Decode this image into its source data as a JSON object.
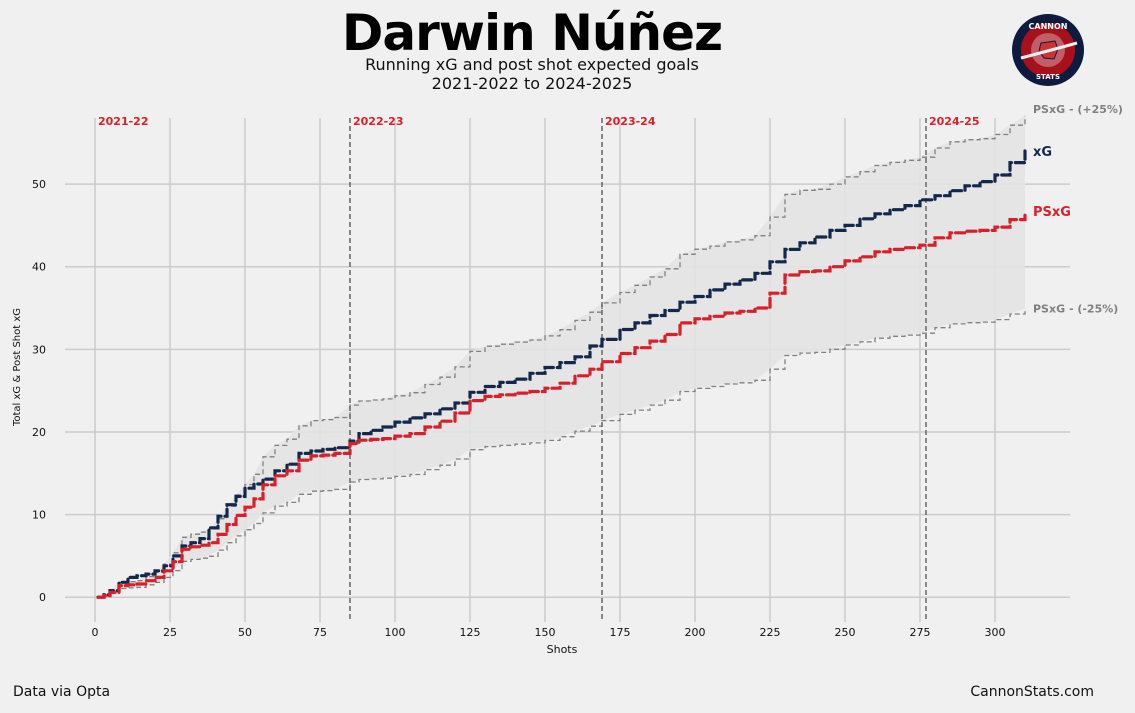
{
  "header": {
    "title": "Darwin Núñez",
    "subtitle_line1": "Running xG and post shot expected goals",
    "subtitle_line2": "2021-2022 to 2024-2025"
  },
  "footer": {
    "left": "Data via Opta",
    "right": "CannonStats.com"
  },
  "logo": {
    "top_text": "CANNON",
    "bottom_text": "STATS"
  },
  "colors": {
    "xg": "#14284b",
    "psxg": "#d81f2a",
    "band": "#808080",
    "band_fill": "#e3e3e3",
    "grid": "#cbcbcb",
    "season_line": "#666666",
    "season_label": "#d81f2a"
  },
  "chart_data": {
    "type": "line",
    "title": "Darwin Núñez",
    "xlabel": "Shots",
    "ylabel": "Total xG & Post Shot xG",
    "xlim": [
      -10,
      325
    ],
    "ylim": [
      -3,
      58
    ],
    "xticks": [
      0,
      25,
      50,
      75,
      100,
      125,
      150,
      175,
      200,
      225,
      250,
      275,
      300
    ],
    "yticks": [
      0,
      10,
      20,
      30,
      40,
      50
    ],
    "seasons": [
      {
        "label": "2021-22",
        "x": 0
      },
      {
        "label": "2022-23",
        "x": 85
      },
      {
        "label": "2023-24",
        "x": 169
      },
      {
        "label": "2024-25",
        "x": 277
      }
    ],
    "series": [
      {
        "name": "xG",
        "end_label": "xG",
        "x": [
          1,
          3,
          5,
          8,
          11,
          14,
          17,
          20,
          23,
          26,
          29,
          32,
          35,
          38,
          41,
          44,
          47,
          50,
          53,
          56,
          60,
          64,
          68,
          72,
          76,
          80,
          85,
          88,
          92,
          96,
          100,
          105,
          110,
          115,
          120,
          125,
          130,
          135,
          140,
          145,
          150,
          155,
          160,
          165,
          169,
          175,
          180,
          185,
          190,
          195,
          200,
          205,
          210,
          215,
          220,
          225,
          230,
          235,
          240,
          245,
          250,
          255,
          260,
          265,
          270,
          275,
          280,
          285,
          290,
          295,
          300,
          305,
          310
        ],
        "values": [
          0.0,
          0.3,
          0.8,
          1.8,
          2.4,
          2.6,
          2.8,
          3.2,
          3.8,
          5.0,
          6.2,
          6.6,
          7.1,
          8.4,
          9.8,
          11.2,
          12.2,
          13.2,
          13.7,
          14.3,
          15.3,
          16.1,
          17.4,
          17.7,
          17.9,
          18.1,
          18.9,
          19.8,
          20.2,
          20.6,
          21.2,
          21.7,
          22.2,
          22.8,
          23.5,
          24.8,
          25.5,
          26.0,
          26.4,
          27.1,
          27.8,
          28.4,
          29.1,
          30.4,
          31.2,
          32.4,
          33.2,
          34.1,
          34.7,
          35.7,
          36.4,
          37.2,
          37.9,
          38.4,
          39.2,
          40.6,
          42.1,
          42.9,
          43.6,
          44.4,
          45.0,
          45.8,
          46.4,
          46.9,
          47.4,
          48.1,
          48.6,
          49.2,
          49.8,
          50.3,
          51.1,
          52.6,
          54.0
        ]
      },
      {
        "name": "PSxG",
        "end_label": "PSxG",
        "x": [
          1,
          3,
          5,
          8,
          11,
          14,
          17,
          20,
          23,
          26,
          29,
          32,
          35,
          38,
          41,
          44,
          47,
          50,
          53,
          56,
          60,
          64,
          68,
          72,
          76,
          80,
          85,
          88,
          92,
          96,
          100,
          105,
          110,
          115,
          120,
          125,
          130,
          135,
          140,
          145,
          150,
          155,
          160,
          165,
          169,
          175,
          180,
          185,
          190,
          195,
          200,
          205,
          210,
          215,
          220,
          225,
          230,
          235,
          240,
          245,
          250,
          255,
          260,
          265,
          270,
          275,
          280,
          285,
          290,
          295,
          300,
          305,
          310
        ],
        "values": [
          0.0,
          0.2,
          0.6,
          1.4,
          1.5,
          1.6,
          2.0,
          2.4,
          3.2,
          4.3,
          5.8,
          6.1,
          6.3,
          6.6,
          7.6,
          8.8,
          9.9,
          10.9,
          11.9,
          13.6,
          14.7,
          15.3,
          16.6,
          17.1,
          17.2,
          17.4,
          18.6,
          19.0,
          19.1,
          19.2,
          19.5,
          19.8,
          20.6,
          21.3,
          22.3,
          23.8,
          24.3,
          24.5,
          24.7,
          24.9,
          25.3,
          25.9,
          26.8,
          27.6,
          28.5,
          29.5,
          30.2,
          31.0,
          31.8,
          33.2,
          33.7,
          34.0,
          34.4,
          34.6,
          35.0,
          36.8,
          39.0,
          39.4,
          39.5,
          40.0,
          40.7,
          41.2,
          41.8,
          42.1,
          42.3,
          42.6,
          43.5,
          44.1,
          44.3,
          44.4,
          44.8,
          45.7,
          46.6
        ]
      }
    ],
    "band": {
      "upper_label": "PSxG - (+25%)",
      "lower_label": "PSxG - (-25%)",
      "factor_upper": 1.25,
      "factor_lower": 0.75,
      "based_on": "PSxG"
    }
  }
}
